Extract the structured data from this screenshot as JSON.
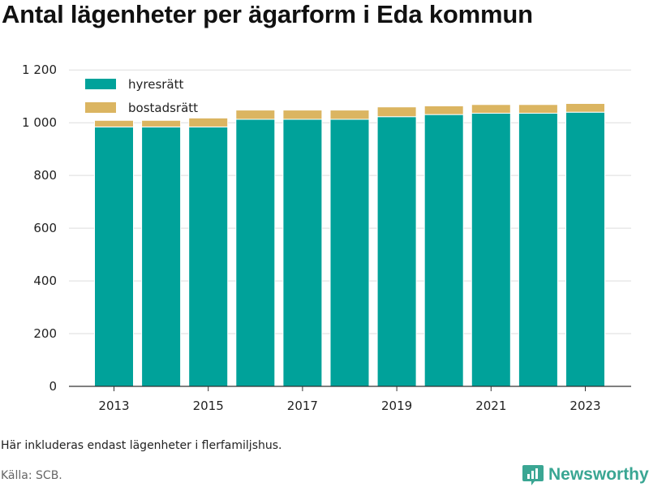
{
  "header": {
    "title": "Antal lägenheter per ägarform i Eda kommun"
  },
  "footer": {
    "note": "Här inkluderas endast lägenheter i flerfamiljshus.",
    "source": "Källa: SCB.",
    "brand": "Newsworthy"
  },
  "colors": {
    "hyresratt": "#00a29a",
    "bostadsratt": "#dbb561",
    "grid": "#dddddd",
    "axis": "#333333",
    "brand": "#3aa693"
  },
  "chart_data": {
    "type": "bar",
    "stacked": true,
    "title": "Antal lägenheter per ägarform i Eda kommun",
    "xlabel": "",
    "ylabel": "",
    "categories": [
      "2013",
      "2014",
      "2015",
      "2016",
      "2017",
      "2018",
      "2019",
      "2020",
      "2021",
      "2022",
      "2023"
    ],
    "x_tick_labels": [
      "2013",
      "2015",
      "2017",
      "2019",
      "2021",
      "2023"
    ],
    "y_ticks": [
      0,
      200,
      400,
      600,
      800,
      1000,
      1200
    ],
    "y_tick_labels": [
      "0",
      "200",
      "400",
      "600",
      "800",
      "1 000",
      "1 200"
    ],
    "ylim": [
      0,
      1250
    ],
    "grid": true,
    "legend_position": "top-left",
    "series": [
      {
        "name": "hyresrätt",
        "values": [
          984,
          984,
          984,
          1013,
          1013,
          1013,
          1023,
          1031,
          1036,
          1036,
          1040
        ]
      },
      {
        "name": "bostadsrätt",
        "values": [
          25,
          25,
          34,
          35,
          35,
          35,
          37,
          33,
          33,
          33,
          33
        ]
      }
    ]
  }
}
